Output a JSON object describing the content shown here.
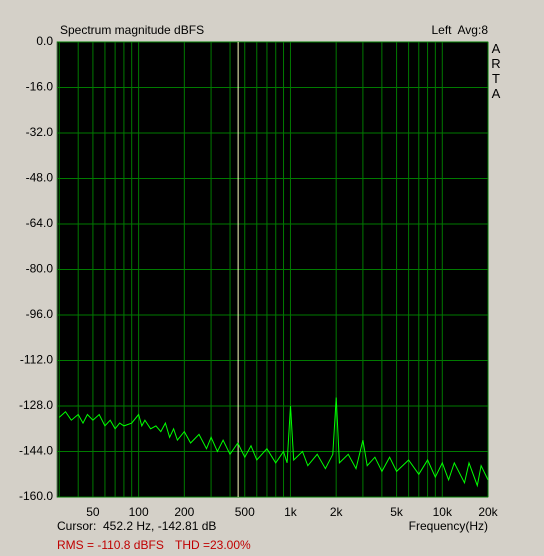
{
  "chart_data": {
    "type": "line",
    "title": "Spectrum magnitude dBFS",
    "channel": "Left  Avg:8",
    "brand": "ARTA",
    "x_label": "Frequency(Hz)",
    "log_x": true,
    "grid": true,
    "xlim": [
      29,
      20000
    ],
    "xticks": [
      50,
      100,
      200,
      500,
      {
        "value": 1000,
        "label": "1k"
      },
      {
        "value": 2000,
        "label": "2k"
      },
      {
        "value": 5000,
        "label": "5k"
      },
      {
        "value": 10000,
        "label": "10k"
      },
      {
        "value": 20000,
        "label": "20k"
      }
    ],
    "xminor": [
      30,
      40,
      60,
      70,
      80,
      90,
      300,
      400,
      600,
      700,
      800,
      900,
      3000,
      4000,
      6000,
      7000,
      8000,
      9000
    ],
    "ylim": [
      -160,
      0
    ],
    "yticks": [
      {
        "value": 0,
        "label": "0.0"
      },
      {
        "value": -16,
        "label": "-16.0"
      },
      {
        "value": -32,
        "label": "-32.0"
      },
      {
        "value": -48,
        "label": "-48.0"
      },
      {
        "value": -64,
        "label": "-64.0"
      },
      {
        "value": -80,
        "label": "-80.0"
      },
      {
        "value": -96,
        "label": "-96.0"
      },
      {
        "value": -112,
        "label": "-112.0"
      },
      {
        "value": -128,
        "label": "-128.0"
      },
      {
        "value": -144,
        "label": "-144.0"
      },
      {
        "value": -160,
        "label": "-160.0"
      }
    ],
    "cursor": {
      "x": 452.2,
      "label": "Cursor:  452.2 Hz, -142.81 dB",
      "color": "#ffffc0"
    },
    "rms": "RMS = -110.8 dBFS",
    "thd": "THD =23.00%",
    "x": [
      30,
      33,
      36,
      40,
      43,
      46,
      50,
      55,
      60,
      65,
      70,
      75,
      80,
      90,
      100,
      105,
      110,
      120,
      130,
      140,
      150,
      160,
      170,
      180,
      200,
      220,
      250,
      280,
      300,
      330,
      360,
      400,
      450,
      500,
      550,
      600,
      700,
      800,
      900,
      950,
      1000,
      1050,
      1200,
      1300,
      1500,
      1700,
      1900,
      2000,
      2100,
      2400,
      2700,
      3000,
      3200,
      3600,
      4000,
      4500,
      5000,
      6000,
      7000,
      8000,
      9000,
      10000,
      11000,
      12000,
      14000,
      15000,
      17000,
      18000,
      20000
    ],
    "series": [
      {
        "color": "#00ff00",
        "values": [
          -132,
          -130,
          -133,
          -131,
          -134,
          -131,
          -133,
          -131,
          -135,
          -133,
          -136,
          -134,
          -135,
          -134,
          -131,
          -135,
          -133,
          -136,
          -135,
          -137,
          -134,
          -139,
          -136,
          -140,
          -137,
          -141,
          -138,
          -143,
          -139,
          -144,
          -140,
          -145,
          -141,
          -146,
          -142,
          -147,
          -143,
          -148,
          -144,
          -148,
          -128,
          -147,
          -144,
          -149,
          -145,
          -150,
          -145,
          -125,
          -148,
          -145,
          -150,
          -140,
          -149,
          -146,
          -151,
          -146,
          -151,
          -147,
          -152,
          -147,
          -153,
          -148,
          -154,
          -148,
          -155,
          -148,
          -156,
          -149,
          -154
        ]
      }
    ]
  }
}
